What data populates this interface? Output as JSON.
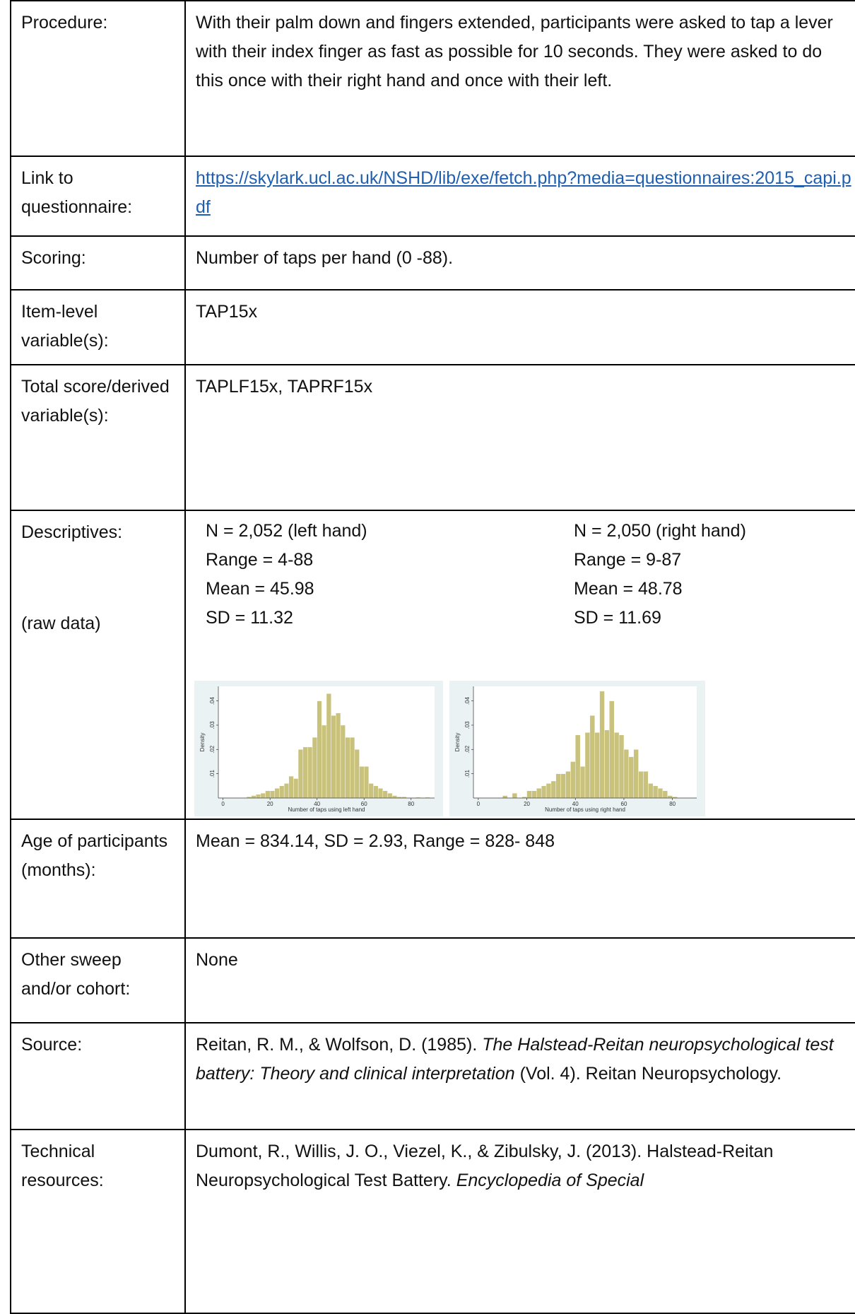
{
  "rows": {
    "procedure": {
      "label": "Procedure:",
      "text": "With their palm down and fingers extended, participants were asked to tap a lever with their index finger as fast as possible for 10 seconds. They were asked to do this once with their right hand and once with their left."
    },
    "link": {
      "label": "Link to questionnaire:",
      "url": "https://skylark.ucl.ac.uk/NSHD/lib/exe/fetch.php?media=questionnaires:2015_capi.pdf"
    },
    "scoring": {
      "label": "Scoring:",
      "text": "Number of taps per hand (0 -88)."
    },
    "item": {
      "label": "Item-level variable(s):",
      "text": "TAP15x"
    },
    "total": {
      "label": "Total score/derived variable(s):",
      "text": "TAPLF15x, TAPRF15x"
    },
    "descriptives": {
      "label": "Descriptives:",
      "note": "(raw data)",
      "left": [
        "N = 2,052 (left hand)",
        "Range = 4-88",
        "Mean = 45.98",
        "SD = 11.32"
      ],
      "right": [
        "N = 2,050 (right hand)",
        "Range = 9-87",
        "Mean = 48.78",
        "SD = 11.69"
      ]
    },
    "age": {
      "label": "Age of participants (months):",
      "text": "Mean = 834.14, SD = 2.93, Range = 828- 848"
    },
    "other": {
      "label": "Other sweep and/or cohort:",
      "text": "None"
    },
    "source": {
      "label": "Source:",
      "parts": [
        "Reitan, R. M., & Wolfson, D. (1985). ",
        "The Halstead-Reitan neuropsychological test battery: Theory and clinical interpretation",
        " (Vol. 4). Reitan Neuropsychology."
      ]
    },
    "technical": {
      "label": "Technical resources:",
      "parts": [
        "Dumont, R., Willis, J. O., Viezel, K., & Zibulsky, J. (2013). Halstead-Reitan Neuropsychological Test Battery. ",
        "Encyclopedia of Special"
      ]
    }
  },
  "chart_data": [
    {
      "type": "histogram",
      "xlabel": "Number of taps using left hand",
      "ylabel": "Density",
      "color": "#c9c27c",
      "bins": [
        10,
        12,
        14,
        16,
        18,
        20,
        22,
        24,
        26,
        28,
        30,
        32,
        34,
        36,
        38,
        40,
        42,
        44,
        46,
        48,
        50,
        52,
        54,
        56,
        58,
        60,
        62,
        64,
        66,
        68,
        70,
        72,
        74,
        76,
        78,
        80,
        82,
        84,
        86,
        88
      ],
      "values": [
        0.0005,
        0.001,
        0.0015,
        0.002,
        0.003,
        0.003,
        0.004,
        0.005,
        0.006,
        0.009,
        0.008,
        0.02,
        0.021,
        0.021,
        0.025,
        0.04,
        0.03,
        0.043,
        0.034,
        0.035,
        0.03,
        0.025,
        0.025,
        0.02,
        0.013,
        0.013,
        0.006,
        0.005,
        0.004,
        0.003,
        0.002,
        0.001,
        0.0005,
        0.0005,
        0,
        0,
        0.0003,
        0,
        0.0003
      ],
      "xlim": [
        -2,
        90
      ],
      "ylim": [
        0,
        0.046
      ],
      "xticks": [
        0,
        20,
        40,
        60,
        80
      ],
      "yticks": [
        {
          "value": 0.01,
          "label": ".01"
        },
        {
          "value": 0.02,
          "label": ".02"
        },
        {
          "value": 0.03,
          "label": ".03"
        },
        {
          "value": 0.04,
          "label": ".04"
        }
      ]
    },
    {
      "type": "histogram",
      "xlabel": "Number of taps using right hand",
      "ylabel": "Density",
      "color": "#c9c27c",
      "bins": [
        10,
        12,
        14,
        16,
        18,
        20,
        22,
        24,
        26,
        28,
        30,
        32,
        34,
        36,
        38,
        40,
        42,
        44,
        46,
        48,
        50,
        52,
        54,
        56,
        58,
        60,
        62,
        64,
        66,
        68,
        70,
        72,
        74,
        76,
        78,
        80,
        82,
        84,
        86,
        88
      ],
      "values": [
        0.001,
        0,
        0.002,
        0,
        0.0005,
        0.003,
        0.003,
        0.004,
        0.005,
        0.006,
        0.007,
        0.01,
        0.01,
        0.011,
        0.015,
        0.026,
        0.013,
        0.027,
        0.034,
        0.027,
        0.044,
        0.028,
        0.04,
        0.027,
        0.026,
        0.02,
        0.017,
        0.02,
        0.011,
        0.011,
        0.006,
        0.005,
        0.004,
        0.003,
        0.001,
        0.0005,
        0,
        0,
        0
      ],
      "xlim": [
        -2,
        90
      ],
      "ylim": [
        0,
        0.046
      ],
      "xticks": [
        0,
        20,
        40,
        60,
        80
      ],
      "yticks": [
        {
          "value": 0.01,
          "label": ".01"
        },
        {
          "value": 0.02,
          "label": ".02"
        },
        {
          "value": 0.03,
          "label": ".03"
        },
        {
          "value": 0.04,
          "label": ".04"
        }
      ]
    }
  ]
}
